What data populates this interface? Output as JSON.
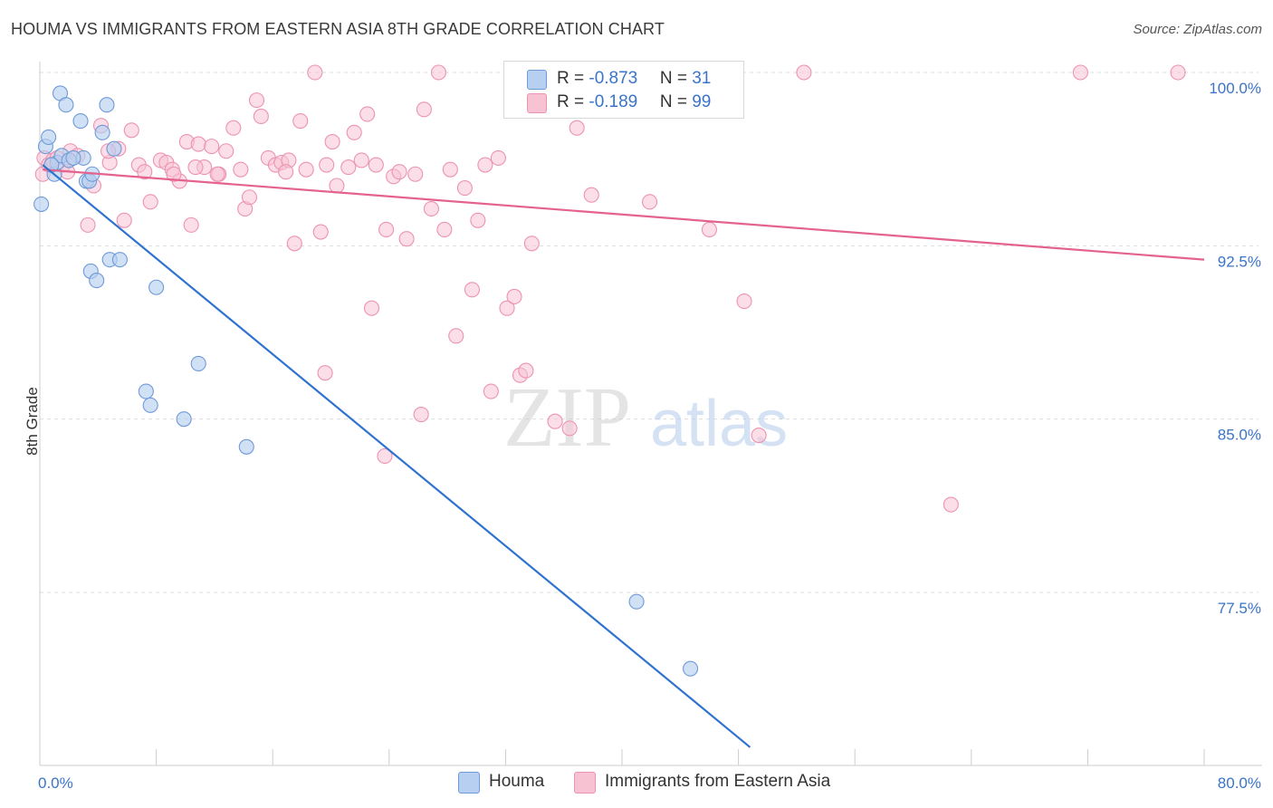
{
  "header": {
    "title": "HOUMA VS IMMIGRANTS FROM EASTERN ASIA 8TH GRADE CORRELATION CHART",
    "source": "Source: ZipAtlas.com"
  },
  "watermark": {
    "zip": "ZIP",
    "atlas": "atlas"
  },
  "legend_stats": {
    "houma": {
      "r_label": "R = ",
      "r_value": "-0.873",
      "n_label": "N = ",
      "n_value": "31"
    },
    "eastern_asia": {
      "r_label": "R = ",
      "r_value": "-0.189",
      "n_label": "N = ",
      "n_value": "99"
    }
  },
  "colors": {
    "houma_fill": "#b7cff0",
    "houma_stroke": "#6f9ad8",
    "houma_line": "#2f73d0",
    "asia_fill": "#f7c3d3",
    "asia_stroke": "#ec93b1",
    "asia_line": "#e4638e",
    "tick_label": "#3a74c9",
    "grid": "#dddddd"
  },
  "chart_data": {
    "type": "scatter",
    "title": "HOUMA VS IMMIGRANTS FROM EASTERN ASIA 8TH GRADE CORRELATION CHART",
    "xlabel": "",
    "ylabel": "8th Grade",
    "xlim": [
      0,
      80
    ],
    "ylim": [
      70.8,
      101.3
    ],
    "x_tick_labels": [
      "0.0%",
      "80.0%"
    ],
    "y_ticks": [
      77.5,
      85.0,
      92.5,
      100.0
    ],
    "y_tick_labels": [
      "77.5%",
      "85.0%",
      "92.5%",
      "100.0%"
    ],
    "grid": true,
    "legend_position": "bottom",
    "series": [
      {
        "name": "Houma",
        "r": -0.873,
        "n": 31,
        "trend": {
          "x": [
            0.2,
            48.8
          ],
          "y": [
            96.0,
            70.8
          ]
        },
        "points": [
          [
            0.1,
            94.3
          ],
          [
            0.4,
            96.8
          ],
          [
            0.6,
            97.2
          ],
          [
            1.0,
            95.6
          ],
          [
            1.2,
            96.1
          ],
          [
            1.4,
            99.1
          ],
          [
            1.5,
            96.4
          ],
          [
            1.8,
            98.6
          ],
          [
            2.0,
            96.2
          ],
          [
            2.8,
            97.9
          ],
          [
            3.0,
            96.3
          ],
          [
            3.2,
            95.3
          ],
          [
            3.4,
            95.3
          ],
          [
            3.5,
            91.4
          ],
          [
            3.6,
            95.6
          ],
          [
            3.9,
            91.0
          ],
          [
            4.3,
            97.4
          ],
          [
            4.6,
            98.6
          ],
          [
            4.8,
            91.9
          ],
          [
            5.1,
            96.7
          ],
          [
            5.5,
            91.9
          ],
          [
            7.3,
            86.2
          ],
          [
            7.6,
            85.6
          ],
          [
            8.0,
            90.7
          ],
          [
            9.9,
            85.0
          ],
          [
            10.9,
            87.4
          ],
          [
            14.2,
            83.8
          ],
          [
            41.0,
            77.1
          ],
          [
            44.7,
            74.2
          ],
          [
            0.8,
            96.0
          ],
          [
            2.3,
            96.3
          ]
        ]
      },
      {
        "name": "Immigrants from Eastern Asia",
        "r": -0.189,
        "n": 99,
        "trend": {
          "x": [
            0.2,
            80
          ],
          "y": [
            95.8,
            91.9
          ]
        },
        "points": [
          [
            0.3,
            96.3
          ],
          [
            0.6,
            96.0
          ],
          [
            0.9,
            96.2
          ],
          [
            1.2,
            96.3
          ],
          [
            1.6,
            96.0
          ],
          [
            2.1,
            96.6
          ],
          [
            2.6,
            96.4
          ],
          [
            3.3,
            93.4
          ],
          [
            3.7,
            95.1
          ],
          [
            4.2,
            97.7
          ],
          [
            4.8,
            96.1
          ],
          [
            5.4,
            96.7
          ],
          [
            5.8,
            93.6
          ],
          [
            6.3,
            97.5
          ],
          [
            6.8,
            96.0
          ],
          [
            7.2,
            95.7
          ],
          [
            7.6,
            94.4
          ],
          [
            8.3,
            96.2
          ],
          [
            8.7,
            96.1
          ],
          [
            9.1,
            95.8
          ],
          [
            9.6,
            95.3
          ],
          [
            10.1,
            97.0
          ],
          [
            10.4,
            93.4
          ],
          [
            10.9,
            96.9
          ],
          [
            11.3,
            95.9
          ],
          [
            11.8,
            96.8
          ],
          [
            12.3,
            95.6
          ],
          [
            12.8,
            96.6
          ],
          [
            13.3,
            97.6
          ],
          [
            13.8,
            95.8
          ],
          [
            14.1,
            94.1
          ],
          [
            14.4,
            94.6
          ],
          [
            14.9,
            98.8
          ],
          [
            15.2,
            98.1
          ],
          [
            15.7,
            96.3
          ],
          [
            16.2,
            96.0
          ],
          [
            16.6,
            96.1
          ],
          [
            17.1,
            96.2
          ],
          [
            17.5,
            92.6
          ],
          [
            17.9,
            97.9
          ],
          [
            18.3,
            95.8
          ],
          [
            18.9,
            100.0
          ],
          [
            19.3,
            93.1
          ],
          [
            19.7,
            96.0
          ],
          [
            20.1,
            97.0
          ],
          [
            20.4,
            95.1
          ],
          [
            21.2,
            95.9
          ],
          [
            21.6,
            97.4
          ],
          [
            22.1,
            96.2
          ],
          [
            22.5,
            98.2
          ],
          [
            22.8,
            89.8
          ],
          [
            23.1,
            96.0
          ],
          [
            23.8,
            93.2
          ],
          [
            24.3,
            95.5
          ],
          [
            24.7,
            95.7
          ],
          [
            25.2,
            92.8
          ],
          [
            25.8,
            95.6
          ],
          [
            26.4,
            98.4
          ],
          [
            26.9,
            94.1
          ],
          [
            27.4,
            100.0
          ],
          [
            27.8,
            93.2
          ],
          [
            28.2,
            95.8
          ],
          [
            28.6,
            88.6
          ],
          [
            29.2,
            95.0
          ],
          [
            29.7,
            90.6
          ],
          [
            30.1,
            93.6
          ],
          [
            30.6,
            96.0
          ],
          [
            31.0,
            86.2
          ],
          [
            31.5,
            96.3
          ],
          [
            32.1,
            89.8
          ],
          [
            32.6,
            90.3
          ],
          [
            33.0,
            86.9
          ],
          [
            33.4,
            87.1
          ],
          [
            33.8,
            92.6
          ],
          [
            34.7,
            100.0
          ],
          [
            35.4,
            84.9
          ],
          [
            36.4,
            84.6
          ],
          [
            36.9,
            97.6
          ],
          [
            37.9,
            94.7
          ],
          [
            41.9,
            94.4
          ],
          [
            44.0,
            100.0
          ],
          [
            46.0,
            93.2
          ],
          [
            48.4,
            90.1
          ],
          [
            49.4,
            84.3
          ],
          [
            52.5,
            100.0
          ],
          [
            62.6,
            81.3
          ],
          [
            71.5,
            100.0
          ],
          [
            78.2,
            100.0
          ],
          [
            19.6,
            87.0
          ],
          [
            23.7,
            83.4
          ],
          [
            1.9,
            95.7
          ],
          [
            4.7,
            96.6
          ],
          [
            9.2,
            95.6
          ],
          [
            10.7,
            95.9
          ],
          [
            12.2,
            95.6
          ],
          [
            16.9,
            95.7
          ],
          [
            26.2,
            85.2
          ],
          [
            39.0,
            100.0
          ],
          [
            0.2,
            95.6
          ]
        ]
      }
    ]
  }
}
